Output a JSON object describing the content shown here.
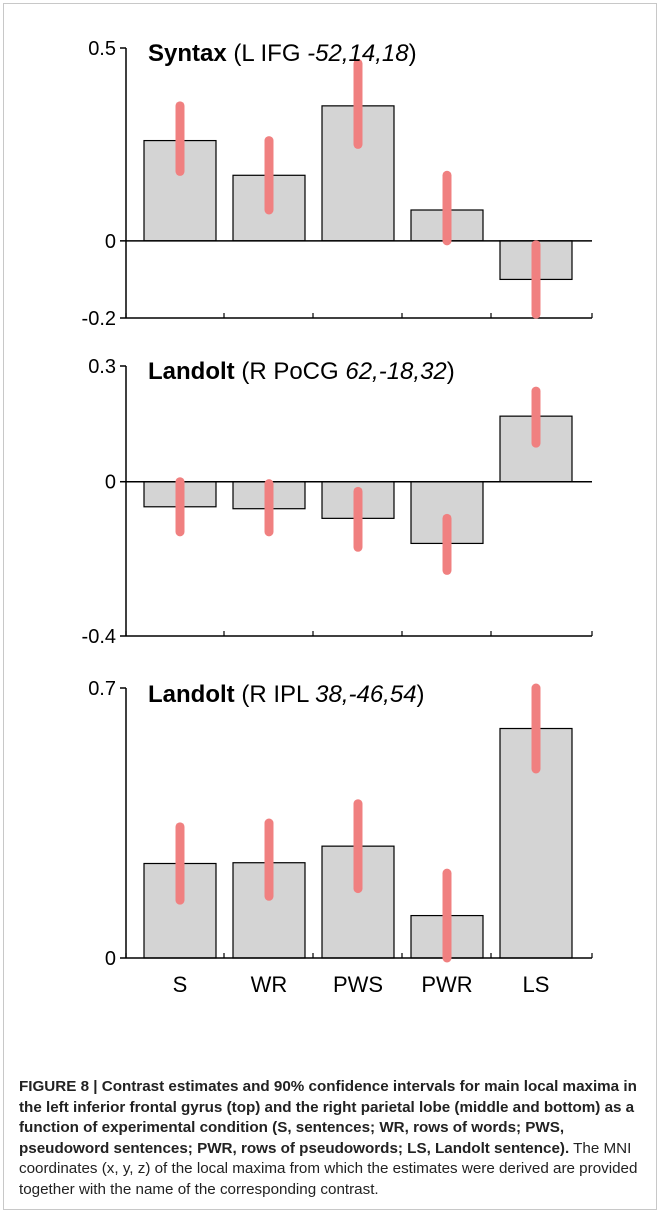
{
  "chart_data": [
    {
      "type": "bar",
      "title_bold": "Syntax",
      "title_open": " (L IFG ",
      "title_coords": "-52,14,18",
      "title_close": ")",
      "categories": [
        "S",
        "WR",
        "PWS",
        "PWR",
        "LS"
      ],
      "values": [
        0.26,
        0.17,
        0.35,
        0.08,
        -0.1
      ],
      "ci_low": [
        0.18,
        0.08,
        0.25,
        0.0,
        -0.19
      ],
      "ci_high": [
        0.35,
        0.26,
        0.46,
        0.17,
        -0.01
      ],
      "ylim": [
        -0.2,
        0.5
      ],
      "yticks": [
        {
          "value": 0.5,
          "label": "0.5"
        },
        {
          "value": 0,
          "label": "0"
        },
        {
          "value": -0.2,
          "label": "-0.2"
        }
      ],
      "grid": false
    },
    {
      "type": "bar",
      "title_bold": "Landolt",
      "title_open": " (R PoCG ",
      "title_coords": "62,-18,32",
      "title_close": ")",
      "categories": [
        "S",
        "WR",
        "PWS",
        "PWR",
        "LS"
      ],
      "values": [
        -0.065,
        -0.07,
        -0.095,
        -0.16,
        0.17
      ],
      "ci_low": [
        -0.13,
        -0.13,
        -0.17,
        -0.23,
        0.1
      ],
      "ci_high": [
        0.0,
        -0.005,
        -0.025,
        -0.095,
        0.235
      ],
      "ylim": [
        -0.4,
        0.3
      ],
      "yticks": [
        {
          "value": 0.3,
          "label": "0.3"
        },
        {
          "value": 0,
          "label": "0"
        },
        {
          "value": -0.4,
          "label": "-0.4"
        }
      ],
      "grid": false
    },
    {
      "type": "bar",
      "title_bold": "Landolt",
      "title_open": " (R IPL ",
      "title_coords": "38,-46,54",
      "title_close": ")",
      "categories": [
        "S",
        "WR",
        "PWS",
        "PWR",
        "LS"
      ],
      "values": [
        0.245,
        0.247,
        0.29,
        0.11,
        0.595
      ],
      "ci_low": [
        0.15,
        0.16,
        0.18,
        0.0,
        0.49
      ],
      "ci_high": [
        0.34,
        0.35,
        0.4,
        0.22,
        0.7
      ],
      "ylim": [
        0,
        0.7
      ],
      "yticks": [
        {
          "value": 0.7,
          "label": "0.7"
        },
        {
          "value": 0,
          "label": "0"
        }
      ],
      "grid": false
    }
  ],
  "colors": {
    "bar_fill": "#d4d4d4",
    "bar_stroke": "#000000",
    "ci": "#f08080"
  },
  "caption": {
    "bold": "FIGURE 8 | Contrast estimates and 90% confidence intervals for main local maxima in the left inferior frontal gyrus (top) and the right parietal lobe (middle and bottom) as a function of experimental condition (S, sentences; WR, rows of words; PWS, pseudoword sentences; PWR, rows of pseudowords; LS, Landolt sentence).",
    "normal": " The MNI coordinates (x, y, z) of the local maxima from which the estimates were derived are provided together with the name of the corresponding contrast."
  }
}
